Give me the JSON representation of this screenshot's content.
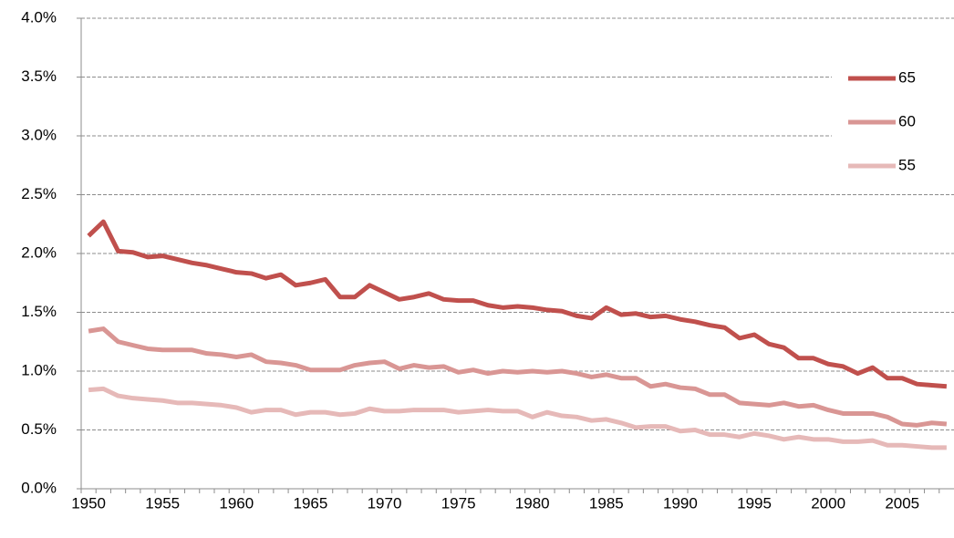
{
  "chart_data": {
    "type": "line",
    "categories": [
      1950,
      null,
      null,
      null,
      null,
      1955,
      null,
      null,
      null,
      null,
      1960,
      null,
      null,
      null,
      null,
      1965,
      null,
      null,
      null,
      null,
      1970,
      null,
      null,
      null,
      null,
      1975,
      null,
      null,
      null,
      null,
      1980,
      null,
      null,
      null,
      null,
      1985,
      null,
      null,
      null,
      null,
      1990,
      null,
      null,
      null,
      null,
      1995,
      null,
      null,
      null,
      null,
      2000,
      null,
      null,
      null,
      null,
      2005,
      null,
      null,
      null
    ],
    "series": [
      {
        "name": "65",
        "color": "#c0504d",
        "values": [
          2.15,
          2.27,
          2.02,
          2.01,
          1.97,
          1.98,
          1.95,
          1.92,
          1.9,
          1.87,
          1.84,
          1.83,
          1.79,
          1.82,
          1.73,
          1.75,
          1.78,
          1.63,
          1.63,
          1.73,
          1.67,
          1.61,
          1.63,
          1.66,
          1.61,
          1.6,
          1.6,
          1.56,
          1.54,
          1.55,
          1.54,
          1.52,
          1.51,
          1.47,
          1.45,
          1.54,
          1.48,
          1.49,
          1.46,
          1.47,
          1.44,
          1.42,
          1.39,
          1.37,
          1.28,
          1.31,
          1.23,
          1.2,
          1.11,
          1.11,
          1.06,
          1.04,
          0.98,
          1.03,
          0.94,
          0.94,
          0.89,
          0.88,
          0.87
        ]
      },
      {
        "name": "60",
        "color": "#d99694",
        "values": [
          1.34,
          1.36,
          1.25,
          1.22,
          1.19,
          1.18,
          1.18,
          1.18,
          1.15,
          1.14,
          1.12,
          1.14,
          1.08,
          1.07,
          1.05,
          1.01,
          1.01,
          1.01,
          1.05,
          1.07,
          1.08,
          1.02,
          1.05,
          1.03,
          1.04,
          0.99,
          1.01,
          0.98,
          1.0,
          0.99,
          1.0,
          0.99,
          1.0,
          0.98,
          0.95,
          0.97,
          0.94,
          0.94,
          0.87,
          0.89,
          0.86,
          0.85,
          0.8,
          0.8,
          0.73,
          0.72,
          0.71,
          0.73,
          0.7,
          0.71,
          0.67,
          0.64,
          0.64,
          0.64,
          0.61,
          0.55,
          0.54,
          0.56,
          0.55
        ]
      },
      {
        "name": "55",
        "color": "#e6b9b8",
        "values": [
          0.84,
          0.85,
          0.79,
          0.77,
          0.76,
          0.75,
          0.73,
          0.73,
          0.72,
          0.71,
          0.69,
          0.65,
          0.67,
          0.67,
          0.63,
          0.65,
          0.65,
          0.63,
          0.64,
          0.68,
          0.66,
          0.66,
          0.67,
          0.67,
          0.67,
          0.65,
          0.66,
          0.67,
          0.66,
          0.66,
          0.61,
          0.65,
          0.62,
          0.61,
          0.58,
          0.59,
          0.56,
          0.52,
          0.53,
          0.53,
          0.49,
          0.5,
          0.46,
          0.46,
          0.44,
          0.47,
          0.45,
          0.42,
          0.44,
          0.42,
          0.42,
          0.4,
          0.4,
          0.41,
          0.37,
          0.37,
          0.36,
          0.35,
          0.35
        ]
      }
    ],
    "ylim": [
      0,
      4
    ],
    "yticks": [
      {
        "value": 0,
        "label": "0.0%"
      },
      {
        "value": 0.5,
        "label": "0.5%"
      },
      {
        "value": 1,
        "label": "1.0%"
      },
      {
        "value": 1.5,
        "label": "1.5%"
      },
      {
        "value": 2,
        "label": "2.0%"
      },
      {
        "value": 2.5,
        "label": "2.5%"
      },
      {
        "value": 3,
        "label": "3.0%"
      },
      {
        "value": 3.5,
        "label": "3.5%"
      },
      {
        "value": 4,
        "label": "4.0%"
      }
    ],
    "grid": true,
    "legend": "top-right"
  }
}
